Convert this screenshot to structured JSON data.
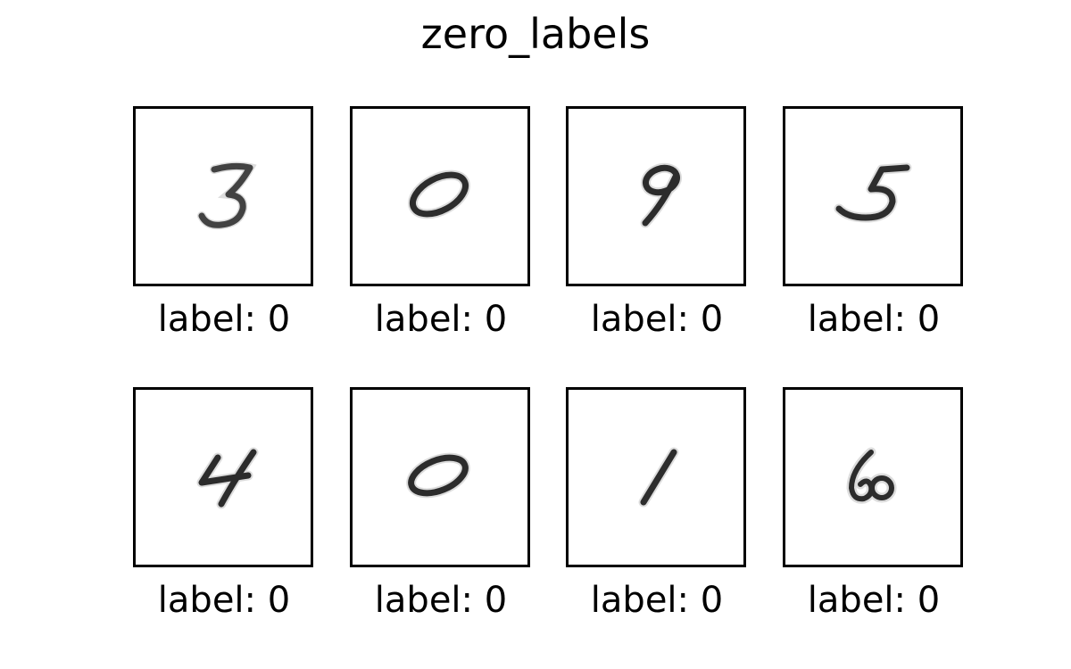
{
  "figure": {
    "title": "zero_labels"
  },
  "panels": [
    {
      "digit_icon": "handwritten-digit-3",
      "label": "label: 0"
    },
    {
      "digit_icon": "handwritten-digit-0",
      "label": "label: 0"
    },
    {
      "digit_icon": "handwritten-digit-9",
      "label": "label: 0"
    },
    {
      "digit_icon": "handwritten-digit-5",
      "label": "label: 0"
    },
    {
      "digit_icon": "handwritten-digit-4",
      "label": "label: 0"
    },
    {
      "digit_icon": "handwritten-digit-0",
      "label": "label: 0"
    },
    {
      "digit_icon": "handwritten-digit-1",
      "label": "label: 0"
    },
    {
      "digit_icon": "handwritten-digit-6",
      "label": "label: 0"
    }
  ]
}
